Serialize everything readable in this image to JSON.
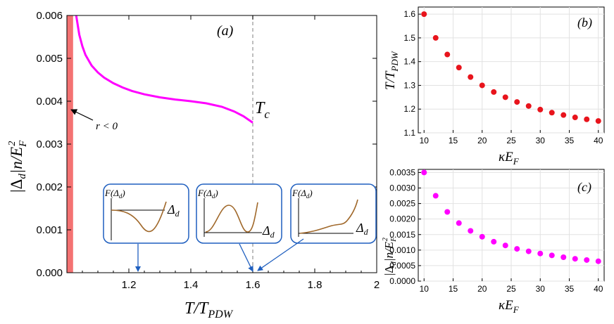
{
  "chart_data": [
    {
      "panel_label": "(a)",
      "type": "line",
      "xlabel": "T/T",
      "xlabel_sub": "PDW",
      "ylabel": "|Δ",
      "ylabel_mid": "|n/E",
      "ylabel_sub_d": "d",
      "ylabel_sub_F": "F",
      "ylabel_sup": "2",
      "xlim": [
        1.0,
        2.0
      ],
      "ylim": [
        0.0,
        0.006
      ],
      "x_ticks": [
        "1.2",
        "1.4",
        "1.6",
        "1.8",
        "2"
      ],
      "x_tick_values": [
        1.2,
        1.4,
        1.6,
        1.8,
        2.0
      ],
      "y_ticks": [
        "0.000",
        "0.001",
        "0.002",
        "0.003",
        "0.004",
        "0.005",
        "0.006"
      ],
      "y_tick_values": [
        0.0,
        0.001,
        0.002,
        0.003,
        0.004,
        0.005,
        0.006
      ],
      "series": [
        {
          "name": "|Δd| n/EF^2",
          "color": "#ff00ff",
          "x": [
            1.03,
            1.04,
            1.05,
            1.06,
            1.08,
            1.1,
            1.12,
            1.15,
            1.18,
            1.21,
            1.25,
            1.3,
            1.35,
            1.4,
            1.45,
            1.5,
            1.54,
            1.57,
            1.6
          ],
          "y": [
            0.006,
            0.00555,
            0.00528,
            0.00508,
            0.00483,
            0.00467,
            0.00455,
            0.00442,
            0.00432,
            0.00424,
            0.00416,
            0.00409,
            0.00404,
            0.004,
            0.00395,
            0.00387,
            0.00376,
            0.00365,
            0.0035
          ]
        }
      ],
      "shaded_region": {
        "x_range": [
          1.0,
          1.02
        ],
        "color": "#f47272"
      },
      "dashed_line": {
        "x": 1.6,
        "color": "#a8a8a8"
      },
      "annotations": {
        "r_label": "r < 0",
        "tc_label": "T",
        "tc_sub": "c"
      },
      "insets": [
        {
          "func_label": "F(Δ",
          "func_sub": "d",
          "func_close": ")",
          "axis_label": "Δ",
          "axis_sub": "d",
          "points_to_x": 1.23,
          "shape": "single-minimum"
        },
        {
          "func_label": "F(Δ",
          "func_sub": "d",
          "func_close": ")",
          "axis_label": "Δ",
          "axis_sub": "d",
          "points_to_x": 1.6,
          "shape": "double-well"
        },
        {
          "func_label": "F(Δ",
          "func_sub": "d",
          "func_close": ")",
          "axis_label": "Δ",
          "axis_sub": "d",
          "points_to_x": 1.63,
          "shape": "monotonic"
        }
      ]
    },
    {
      "panel_label": "(b)",
      "type": "scatter",
      "xlabel": "κE",
      "xlabel_sub": "F",
      "ylabel": "T/T",
      "ylabel_sub": "PDW",
      "xlim": [
        9,
        41
      ],
      "ylim": [
        1.1,
        1.63
      ],
      "x_ticks": [
        "10",
        "15",
        "20",
        "25",
        "30",
        "35",
        "40"
      ],
      "x_tick_values": [
        10,
        15,
        20,
        25,
        30,
        35,
        40
      ],
      "y_ticks": [
        "1.1",
        "1.2",
        "1.3",
        "1.4",
        "1.5",
        "1.6"
      ],
      "y_tick_values": [
        1.1,
        1.2,
        1.3,
        1.4,
        1.5,
        1.6
      ],
      "color": "#e8141c",
      "x": [
        10,
        12,
        14,
        16,
        18,
        20,
        22,
        24,
        26,
        28,
        30,
        32,
        34,
        36,
        38,
        40
      ],
      "y": [
        1.6,
        1.5,
        1.43,
        1.375,
        1.335,
        1.3,
        1.272,
        1.25,
        1.23,
        1.213,
        1.198,
        1.185,
        1.175,
        1.165,
        1.157,
        1.15
      ]
    },
    {
      "panel_label": "(c)",
      "type": "scatter",
      "xlabel": "κE",
      "xlabel_sub": "F",
      "ylabel": "|Δ",
      "ylabel_mid": "|n/E",
      "ylabel_sub_d": "d",
      "ylabel_sub_F": "F",
      "ylabel_sup": "2",
      "xlim": [
        9,
        41
      ],
      "ylim": [
        0.0,
        0.0036
      ],
      "x_ticks": [
        "10",
        "15",
        "20",
        "25",
        "30",
        "35",
        "40"
      ],
      "x_tick_values": [
        10,
        15,
        20,
        25,
        30,
        35,
        40
      ],
      "y_ticks": [
        "0.0000",
        "0.0005",
        "0.0010",
        "0.0015",
        "0.0020",
        "0.0025",
        "0.0030",
        "0.0035"
      ],
      "y_tick_values": [
        0.0,
        0.0005,
        0.001,
        0.0015,
        0.002,
        0.0025,
        0.003,
        0.0035
      ],
      "color": "#ff00ff",
      "x": [
        10,
        12,
        14,
        16,
        18,
        20,
        22,
        24,
        26,
        28,
        30,
        32,
        34,
        36,
        38,
        40
      ],
      "y": [
        0.0035,
        0.00275,
        0.00223,
        0.00187,
        0.00162,
        0.00143,
        0.00127,
        0.00115,
        0.00104,
        0.00096,
        0.00089,
        0.00083,
        0.00077,
        0.00072,
        0.00068,
        0.00064
      ]
    }
  ]
}
